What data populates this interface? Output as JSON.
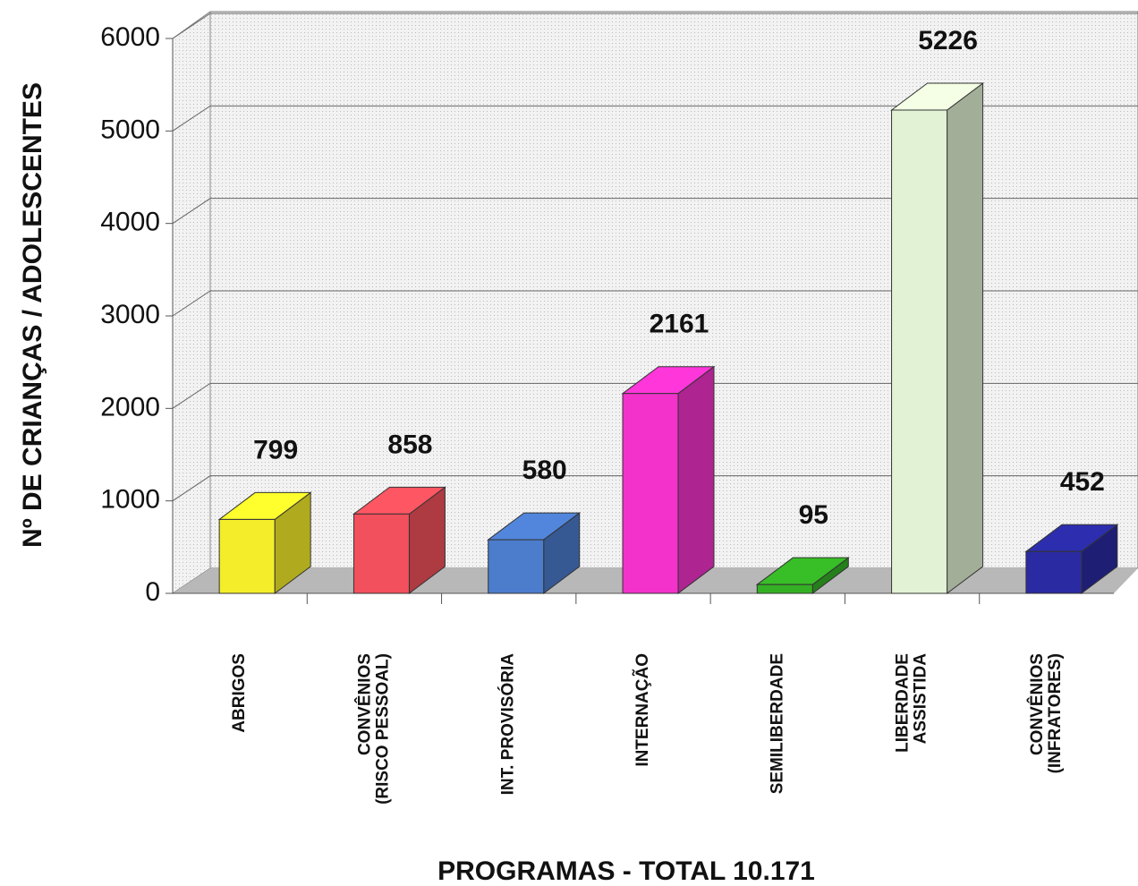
{
  "chart_data": {
    "type": "bar3d",
    "y_label": "Nº DE CRIANÇAS / ADOLESCENTES",
    "x_label": "PROGRAMAS - TOTAL 10.171",
    "categories": [
      "ABRIGOS",
      "CONVÊNIOS\n(RISCO PESSOAL)",
      "INT. PROVISÓRIA",
      "INTERNAÇÃO",
      "SEMILIBERDADE",
      "LIBERDADE\nASSISTIDA",
      "CONVÊNIOS\n(INFRATORES)"
    ],
    "values": [
      799,
      858,
      580,
      2161,
      95,
      5226,
      452
    ],
    "colors": [
      "#f4ee2a",
      "#f2505c",
      "#4c7ccc",
      "#f232ca",
      "#34b024",
      "#e2f2d4",
      "#2a2aa2"
    ],
    "ylim": [
      0,
      6000
    ],
    "yticks": [
      0,
      1000,
      2000,
      3000,
      4000,
      5000,
      6000
    ],
    "grid": true
  }
}
